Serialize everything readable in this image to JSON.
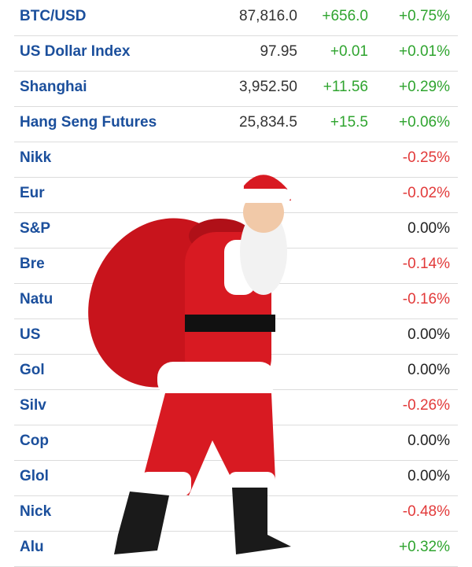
{
  "table": {
    "rows": [
      {
        "name": "BTC/USD",
        "price": "87,816.0",
        "change": "+656.0",
        "percent": "+0.75%"
      },
      {
        "name": "US Dollar Index",
        "price": "97.95",
        "change": "+0.01",
        "percent": "+0.01%"
      },
      {
        "name": "Shanghai",
        "price": "3,952.50",
        "change": "+11.56",
        "percent": "+0.29%"
      },
      {
        "name": "Hang Seng Futures",
        "price": "25,834.5",
        "change": "+15.5",
        "percent": "+0.06%"
      },
      {
        "name": "Nikk",
        "percent": "-0.25%"
      },
      {
        "name": "Eur",
        "percent": "-0.02%"
      },
      {
        "name": "S&P",
        "percent": "0.00%"
      },
      {
        "name": "Bre",
        "percent": "-0.14%"
      },
      {
        "name": "Natu",
        "percent": "-0.16%"
      },
      {
        "name": "US",
        "percent": "0.00%"
      },
      {
        "name": "Gol",
        "percent": "0.00%"
      },
      {
        "name": "Silv",
        "percent": "-0.26%"
      },
      {
        "name": "Cop",
        "percent": "0.00%"
      },
      {
        "name": "Glol",
        "percent": "0.00%"
      },
      {
        "name": "Nick",
        "percent": "-0.48%"
      },
      {
        "name": "Alu",
        "percent": "+0.32%"
      }
    ]
  }
}
